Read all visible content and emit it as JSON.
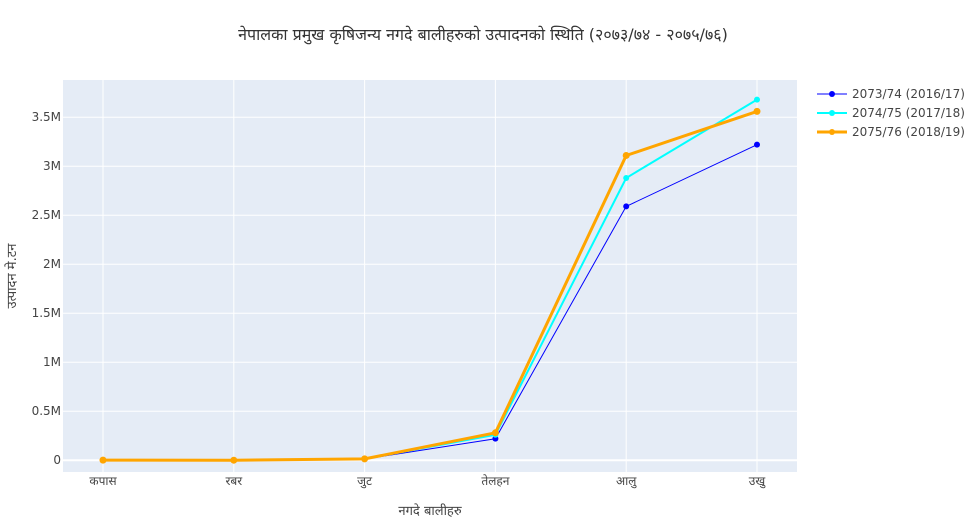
{
  "chart_data": {
    "type": "line",
    "title": "नेपालका प्रमुख कृषिजन्य नगदे बालीहरुको उत्पादनको स्थिति (२०७३/७४ - २०७५/७६)",
    "xlabel": "नगदे बालीहरु",
    "ylabel": "उत्पादन मे.टन",
    "categories": [
      "कपास",
      "रबर",
      "जुट",
      "तेलहन",
      "आलु",
      "उखु"
    ],
    "y_ticks": [
      {
        "value": 0,
        "label": "0"
      },
      {
        "value": 500000,
        "label": "0.5M"
      },
      {
        "value": 1000000,
        "label": "1M"
      },
      {
        "value": 1500000,
        "label": "1.5M"
      },
      {
        "value": 2000000,
        "label": "2M"
      },
      {
        "value": 2500000,
        "label": "2.5M"
      },
      {
        "value": 3000000,
        "label": "3M"
      },
      {
        "value": 3500000,
        "label": "3.5M"
      }
    ],
    "ylim": [
      -120000,
      3880000
    ],
    "grid": true,
    "legend_position": "top-right",
    "plot_background": "#e5ecf6",
    "series": [
      {
        "name": "2073/74 (2016/17)",
        "color": "#0000ff",
        "values": [
          1000,
          500,
          12000,
          220000,
          2590000,
          3220000
        ]
      },
      {
        "name": "2074/75 (2017/18)",
        "color": "#00ffff",
        "values": [
          1000,
          500,
          14000,
          260000,
          2880000,
          3680000
        ]
      },
      {
        "name": "2075/76 (2018/19)",
        "color": "#ffa500",
        "values": [
          1000,
          500,
          14000,
          280000,
          3110000,
          3560000
        ]
      }
    ]
  }
}
